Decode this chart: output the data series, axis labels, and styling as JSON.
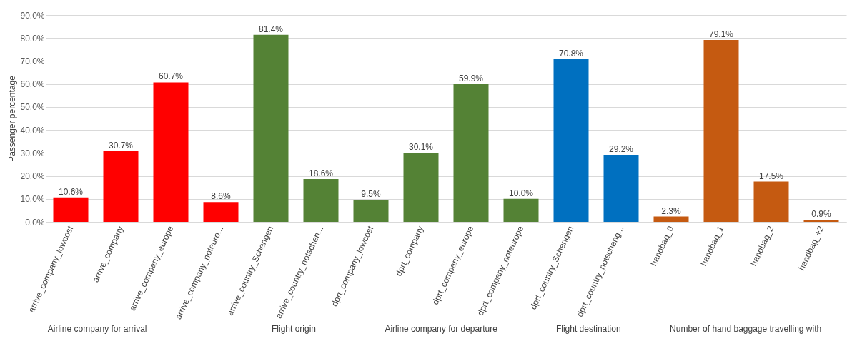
{
  "chart_data": {
    "type": "bar",
    "ylabel": "Passenger percentage",
    "categories": [
      "arrive_company_lowcost",
      "arrive_company",
      "arrive_company_europe",
      "arrive_company_noteuro...",
      "arrive_country_Schengen",
      "arrive_country_notschen...",
      "dprt_company_lowcost",
      "dprt_company",
      "dprt_company_europe",
      "dprt_company_noteurope",
      "dprt_country_Schengen",
      "dprt_country_notscheng...",
      "handbag_0",
      "handbag_1",
      "handbag_2",
      "handbag_+2"
    ],
    "values": [
      10.6,
      30.7,
      60.7,
      8.6,
      81.4,
      18.6,
      9.5,
      30.1,
      59.9,
      10.0,
      70.8,
      29.2,
      2.3,
      79.1,
      17.5,
      0.9
    ],
    "value_labels": [
      "10.6%",
      "30.7%",
      "60.7%",
      "8.6%",
      "81.4%",
      "18.6%",
      "9.5%",
      "30.1%",
      "59.9%",
      "10.0%",
      "70.8%",
      "29.2%",
      "2.3%",
      "79.1%",
      "17.5%",
      "0.9%"
    ],
    "colors": [
      "#ff0000",
      "#ff0000",
      "#ff0000",
      "#ff0000",
      "#548235",
      "#548235",
      "#548235",
      "#548235",
      "#548235",
      "#548235",
      "#0070c0",
      "#0070c0",
      "#c55a11",
      "#c55a11",
      "#c55a11",
      "#c55a11"
    ],
    "ylim": [
      0,
      90
    ],
    "yticks": [
      {
        "value": 0,
        "label": "0.0%"
      },
      {
        "value": 10,
        "label": "10.0%"
      },
      {
        "value": 20,
        "label": "20.0%"
      },
      {
        "value": 30,
        "label": "30.0%"
      },
      {
        "value": 40,
        "label": "40.0%"
      },
      {
        "value": 50,
        "label": "50.0%"
      },
      {
        "value": 60,
        "label": "60.0%"
      },
      {
        "value": 70,
        "label": "70.0%"
      },
      {
        "value": 80,
        "label": "80.0%"
      },
      {
        "value": 90,
        "label": "90.0%"
      }
    ],
    "grid": "y",
    "annotations": [
      "Airline company for arrival",
      "Flight origin",
      "Airline company for departure",
      "Flight destination",
      "Number of hand baggage travelling with"
    ]
  }
}
